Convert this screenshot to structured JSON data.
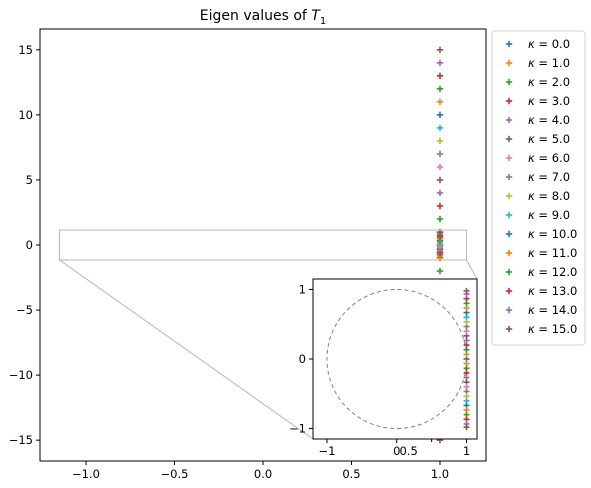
{
  "chart_data": {
    "type": "scatter",
    "title": {
      "prefix": "Eigen values of ",
      "symbol": "T",
      "subscript": "1"
    },
    "xlabel": "",
    "ylabel": "",
    "main_axes": {
      "xlim": [
        -1.26,
        1.26
      ],
      "ylim": [
        -16.6,
        16.6
      ],
      "xticks": [
        -1.0,
        -0.5,
        0.0,
        0.5,
        1.0
      ],
      "xtick_labels": [
        "−1.0",
        "−0.5",
        "0.0",
        "0.5",
        "1.0"
      ],
      "yticks": [
        -15,
        -10,
        -5,
        0,
        5,
        10,
        15
      ],
      "ytick_labels": [
        "−15",
        "−10",
        "−5",
        "0",
        "5",
        "10",
        "15"
      ]
    },
    "zoom_region": {
      "xlim": [
        -1.15,
        1.15
      ],
      "ylim": [
        -1.15,
        1.15
      ]
    },
    "inset_axes": {
      "xlim": [
        -1.2,
        1.15
      ],
      "ylim": [
        -1.15,
        1.15
      ],
      "xticks": [
        -1,
        0,
        1
      ],
      "xtick_labels": [
        "−1",
        "0",
        "1"
      ],
      "xticks_minor_labeled": [
        0.5
      ],
      "xtick_minor_labels": [
        "0.5"
      ],
      "yticks": [
        -1,
        0,
        1
      ],
      "ytick_labels": [
        "−1",
        "0",
        "1"
      ],
      "unit_circle": {
        "radius": 1.0,
        "color": "#808080",
        "dashed": true
      }
    },
    "legend": {
      "placement": "outside-right"
    },
    "marker": "+",
    "series": [
      {
        "kappa": 0,
        "label_prefix": "κ = ",
        "label_value": "0.0",
        "color": "#1f77b4"
      },
      {
        "kappa": 1,
        "label_prefix": "κ = ",
        "label_value": "1.0",
        "color": "#ff7f0e"
      },
      {
        "kappa": 2,
        "label_prefix": "κ = ",
        "label_value": "2.0",
        "color": "#2ca02c"
      },
      {
        "kappa": 3,
        "label_prefix": "κ = ",
        "label_value": "3.0",
        "color": "#d62728"
      },
      {
        "kappa": 4,
        "label_prefix": "κ = ",
        "label_value": "4.0",
        "color": "#9467bd"
      },
      {
        "kappa": 5,
        "label_prefix": "κ = ",
        "label_value": "5.0",
        "color": "#8c564b"
      },
      {
        "kappa": 6,
        "label_prefix": "κ = ",
        "label_value": "6.0",
        "color": "#e377c2"
      },
      {
        "kappa": 7,
        "label_prefix": "κ = ",
        "label_value": "7.0",
        "color": "#7f7f7f"
      },
      {
        "kappa": 8,
        "label_prefix": "κ = ",
        "label_value": "8.0",
        "color": "#bcbd22"
      },
      {
        "kappa": 9,
        "label_prefix": "κ = ",
        "label_value": "9.0",
        "color": "#17becf"
      },
      {
        "kappa": 10,
        "label_prefix": "κ = ",
        "label_value": "10.0",
        "color": "#1f77b4"
      },
      {
        "kappa": 11,
        "label_prefix": "κ = ",
        "label_value": "11.0",
        "color": "#ff7f0e"
      },
      {
        "kappa": 12,
        "label_prefix": "κ = ",
        "label_value": "12.0",
        "color": "#2ca02c"
      },
      {
        "kappa": 13,
        "label_prefix": "κ = ",
        "label_value": "13.0",
        "color": "#d62728"
      },
      {
        "kappa": 14,
        "label_prefix": "κ = ",
        "label_value": "14.0",
        "color": "#9467bd"
      },
      {
        "kappa": 15,
        "label_prefix": "κ = ",
        "label_value": "15.0",
        "color": "#8c564b"
      }
    ],
    "points_real_part": 1.0,
    "points_imag_part": "±κ"
  }
}
